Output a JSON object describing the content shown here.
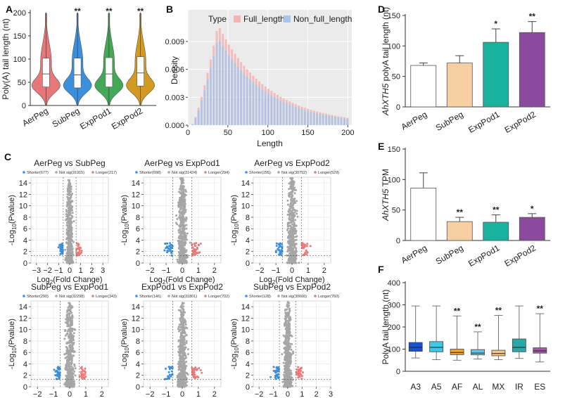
{
  "panels": {
    "A": {
      "letter": "A"
    },
    "B": {
      "letter": "B"
    },
    "C": {
      "letter": "C"
    },
    "D": {
      "letter": "D"
    },
    "E": {
      "letter": "E"
    },
    "F": {
      "letter": "F"
    }
  },
  "chart_data": [
    {
      "id": "A",
      "type": "violin",
      "ylabel": "Poly(A) tail length (nt)",
      "ylim": [
        0,
        200
      ],
      "yticks": [
        0,
        50,
        100,
        150,
        200
      ],
      "categories": [
        "AerPeg",
        "SubPeg",
        "ExpPod1",
        "ExpPod2"
      ],
      "colors": [
        "#e8777a",
        "#3c8fdc",
        "#43a858",
        "#d39a22"
      ],
      "medians": [
        68,
        66,
        68,
        70
      ],
      "q1": [
        40,
        38,
        40,
        42
      ],
      "q3": [
        102,
        102,
        103,
        105
      ],
      "significance": [
        "",
        "**",
        "**",
        "**"
      ]
    },
    {
      "id": "B",
      "type": "bar",
      "xlabel": "Length",
      "ylabel": "Density",
      "legend_title": "Type",
      "series": [
        {
          "name": "Full_length",
          "color": "#f4b4b4",
          "peak": 0.0108,
          "peak_x": 38
        },
        {
          "name": "Non_full_length",
          "color": "#a9c6ea",
          "peak": 0.0101,
          "peak_x": 38
        }
      ],
      "xticks": [
        0,
        50,
        100,
        150,
        200
      ],
      "xlim": [
        0,
        205
      ],
      "yticks": [
        "0.000",
        "0.003",
        "0.006",
        "0.009"
      ],
      "ylim": [
        0,
        0.0124
      ]
    },
    {
      "id": "C",
      "type": "scatter",
      "xlabel": "Log2(Fold Change)",
      "ylabel": "-Log10(Pvalue)",
      "legend_labels": [
        "Shorter",
        "Not sig",
        "Longer"
      ],
      "colors": {
        "shorter": "#3c8fdc",
        "notsig": "#a6a6a6",
        "longer": "#ea7a7a"
      },
      "plots": [
        {
          "title": "AerPeg vs SubPeg",
          "shorter": 677,
          "notsig": 31915,
          "longer": 217,
          "xlim": [
            -3.5,
            3.5
          ],
          "xticks": [
            -3,
            -2,
            -1,
            0,
            1,
            2,
            3
          ]
        },
        {
          "title": "AerPeg vs ExpPod1",
          "shorter": 698,
          "notsig": 31424,
          "longer": 294,
          "xlim": [
            -2.4,
            2.4
          ],
          "xticks": [
            -2,
            -1,
            0,
            1,
            2
          ]
        },
        {
          "title": "AerPeg vs ExpPod2",
          "shorter": 295,
          "notsig": 30752,
          "longer": 529,
          "xlim": [
            -2.4,
            2.4
          ],
          "xticks": [
            -2,
            -1,
            0,
            1,
            2
          ]
        },
        {
          "title": "SubPeg vs ExpPod1",
          "shorter": 290,
          "notsig": 32298,
          "longer": 343,
          "xlim": [
            -2.4,
            2.4
          ],
          "xticks": [
            -2,
            -1,
            0,
            1,
            2
          ]
        },
        {
          "title": "ExpPod1 vs ExpPod2",
          "shorter": 146,
          "notsig": 31801,
          "longer": 702,
          "xlim": [
            -2.4,
            2.4
          ],
          "xticks": [
            -2,
            -1,
            0,
            1,
            2
          ]
        },
        {
          "title": "SubPeg vs ExpPod2",
          "shorter": 128,
          "notsig": 30666,
          "longer": 760,
          "xlim": [
            -2.4,
            3.0
          ],
          "xticks": [
            -2,
            -1,
            0,
            1,
            2,
            3
          ]
        }
      ],
      "ylim": [
        0,
        15
      ],
      "yticks": [
        0,
        2,
        4,
        6,
        8,
        10,
        12,
        14
      ]
    },
    {
      "id": "D",
      "type": "bar",
      "ylabel": "AhXTH5 polyA tail length (nt)",
      "categories": [
        "AerPeg",
        "SubPeg",
        "ExpPod1",
        "ExpPod2"
      ],
      "values": [
        68,
        72,
        106,
        122
      ],
      "errors": [
        4,
        12,
        22,
        18
      ],
      "colors": [
        "#ffffff",
        "#f8cfa0",
        "#1bb19f",
        "#8c4a9e"
      ],
      "significance": [
        "",
        "",
        "*",
        "**"
      ],
      "ylim": [
        0,
        150
      ],
      "yticks": [
        0,
        50,
        100,
        150
      ]
    },
    {
      "id": "E",
      "type": "bar",
      "ylabel": "AhXTH5 TPM",
      "categories": [
        "AerPeg",
        "SubPeg",
        "ExpPod1",
        "ExpPod2"
      ],
      "values": [
        86,
        31,
        30,
        38
      ],
      "errors": [
        25,
        7,
        12,
        6
      ],
      "colors": [
        "#ffffff",
        "#f8cfa0",
        "#1bb19f",
        "#8c4a9e"
      ],
      "significance": [
        "",
        "**",
        "**",
        "*"
      ],
      "ylim": [
        0,
        150
      ],
      "yticks": [
        0,
        50,
        100,
        150
      ]
    },
    {
      "id": "F",
      "type": "box",
      "ylabel": "PolyA tail length (nt)",
      "categories": [
        "A3",
        "A5",
        "AF",
        "AL",
        "MX",
        "IR",
        "ES"
      ],
      "colors": [
        "#1a4fd6",
        "#3ec7e8",
        "#f5a21a",
        "#62c6e6",
        "#f2c88a",
        "#2aa8a8",
        "#a25ca3"
      ],
      "min": [
        60,
        52,
        50,
        55,
        52,
        58,
        42
      ],
      "q1": [
        90,
        88,
        75,
        74,
        70,
        88,
        82
      ],
      "median": [
        108,
        108,
        85,
        82,
        80,
        108,
        92
      ],
      "q3": [
        130,
        134,
        100,
        98,
        95,
        146,
        106
      ],
      "max": [
        295,
        295,
        250,
        178,
        252,
        295,
        260
      ],
      "significance": [
        "",
        "",
        "**",
        "**",
        "**",
        "",
        "**"
      ],
      "ylim": [
        0,
        400
      ],
      "yticks": [
        0,
        100,
        200,
        300,
        400
      ]
    }
  ]
}
